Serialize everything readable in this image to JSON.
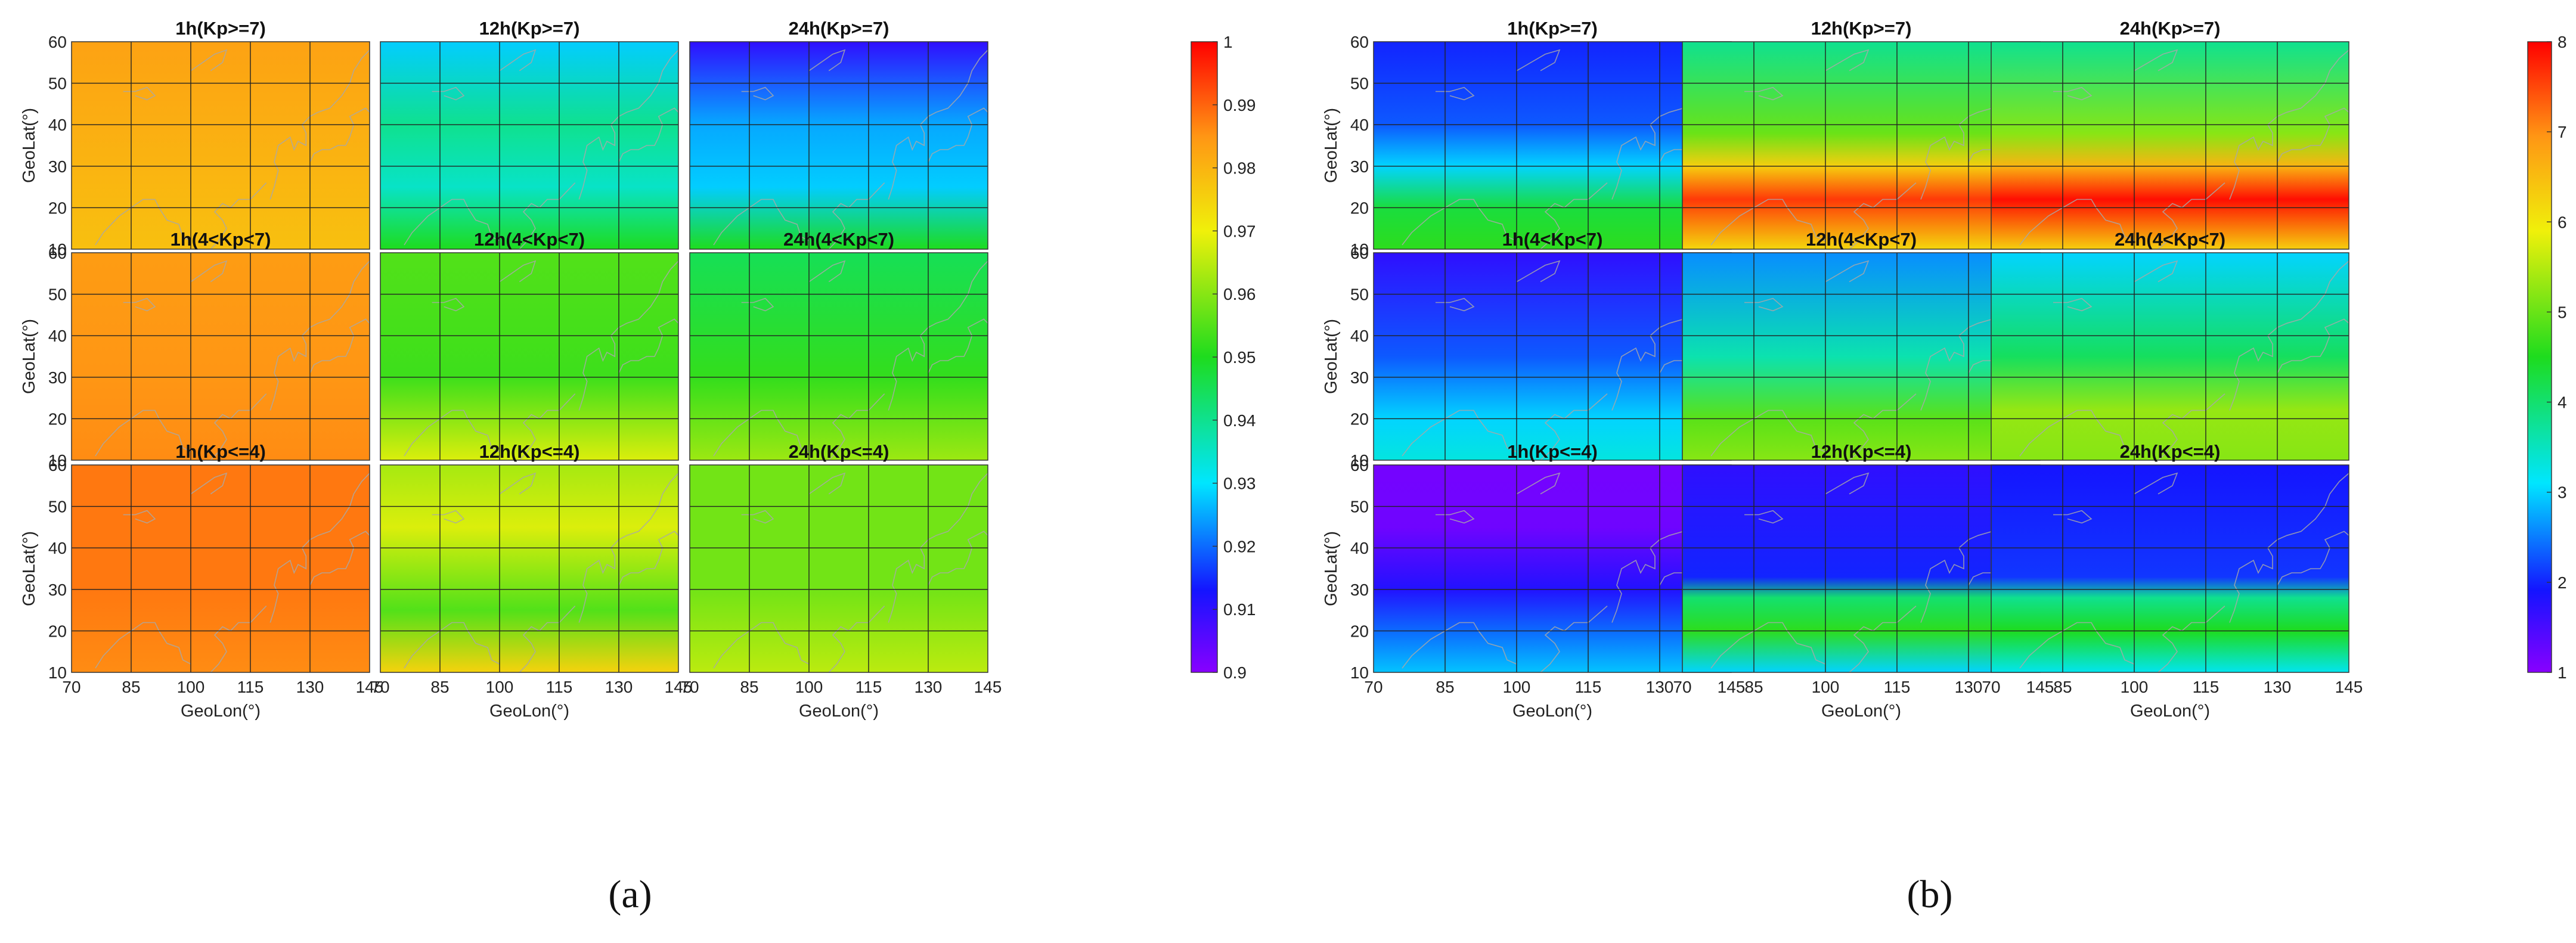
{
  "figure": {
    "sublabels": [
      "(a)",
      "(b)"
    ]
  },
  "chart_data": [
    {
      "type": "heatmap",
      "panel": "(a)",
      "xlabel": "GeoLon(°)",
      "ylabel": "GeoLat(°)",
      "xlim": [
        70,
        145
      ],
      "ylim": [
        10,
        60
      ],
      "xticks": [
        "70",
        "85",
        "100",
        "115",
        "130",
        "145"
      ],
      "yticks": [
        "10",
        "20",
        "30",
        "40",
        "50",
        "60"
      ],
      "grid": true,
      "colorbar": {
        "range": [
          0.9,
          1.0
        ],
        "ticks": [
          "0.9",
          "0.91",
          "0.92",
          "0.93",
          "0.94",
          "0.95",
          "0.96",
          "0.97",
          "0.98",
          "0.99",
          "1"
        ]
      },
      "subplots": [
        {
          "title": "1h(Kp>=7)",
          "value_range": [
            0.978,
            0.985
          ],
          "lat_profile": [
            {
              "lat": 10,
              "v": 0.978
            },
            {
              "lat": 30,
              "v": 0.98
            },
            {
              "lat": 60,
              "v": 0.983
            }
          ]
        },
        {
          "title": "12h(Kp>=7)",
          "value_range": [
            0.925,
            0.95
          ],
          "lat_profile": [
            {
              "lat": 10,
              "v": 0.95
            },
            {
              "lat": 25,
              "v": 0.935
            },
            {
              "lat": 40,
              "v": 0.94
            },
            {
              "lat": 60,
              "v": 0.928
            }
          ]
        },
        {
          "title": "24h(Kp>=7)",
          "value_range": [
            0.905,
            0.95
          ],
          "lat_profile": [
            {
              "lat": 10,
              "v": 0.95
            },
            {
              "lat": 25,
              "v": 0.928
            },
            {
              "lat": 40,
              "v": 0.925
            },
            {
              "lat": 60,
              "v": 0.91
            }
          ]
        },
        {
          "title": "1h(4<Kp<7)",
          "value_range": [
            0.983,
            0.988
          ],
          "lat_profile": [
            {
              "lat": 10,
              "v": 0.986
            },
            {
              "lat": 30,
              "v": 0.985
            },
            {
              "lat": 60,
              "v": 0.984
            }
          ]
        },
        {
          "title": "12h(4<Kp<7)",
          "value_range": [
            0.95,
            0.968
          ],
          "lat_profile": [
            {
              "lat": 10,
              "v": 0.968
            },
            {
              "lat": 30,
              "v": 0.953
            },
            {
              "lat": 60,
              "v": 0.955
            }
          ]
        },
        {
          "title": "24h(4<Kp<7)",
          "value_range": [
            0.92,
            0.965
          ],
          "lat_profile": [
            {
              "lat": 10,
              "v": 0.962
            },
            {
              "lat": 30,
              "v": 0.952
            },
            {
              "lat": 60,
              "v": 0.945
            }
          ]
        },
        {
          "title": "1h(Kp<=4)",
          "value_range": [
            0.986,
            0.99
          ],
          "lat_profile": [
            {
              "lat": 10,
              "v": 0.986
            },
            {
              "lat": 30,
              "v": 0.988
            },
            {
              "lat": 60,
              "v": 0.988
            }
          ]
        },
        {
          "title": "12h(Kp<=4)",
          "value_range": [
            0.955,
            0.975
          ],
          "lat_profile": [
            {
              "lat": 10,
              "v": 0.975
            },
            {
              "lat": 25,
              "v": 0.955
            },
            {
              "lat": 45,
              "v": 0.968
            },
            {
              "lat": 60,
              "v": 0.963
            }
          ]
        },
        {
          "title": "24h(Kp<=4)",
          "value_range": [
            0.955,
            0.968
          ],
          "lat_profile": [
            {
              "lat": 10,
              "v": 0.965
            },
            {
              "lat": 30,
              "v": 0.958
            },
            {
              "lat": 60,
              "v": 0.958
            }
          ]
        }
      ]
    },
    {
      "type": "heatmap",
      "panel": "(b)",
      "xlabel": "GeoLon(°)",
      "ylabel": "GeoLat(°)",
      "xlim": [
        70,
        145
      ],
      "ylim": [
        10,
        60
      ],
      "xticks": [
        "70",
        "85",
        "100",
        "115",
        "130",
        "145"
      ],
      "yticks": [
        "10",
        "20",
        "30",
        "40",
        "50",
        "60"
      ],
      "grid": true,
      "colorbar": {
        "range": [
          1,
          8
        ],
        "ticks": [
          "1",
          "2",
          "3",
          "4",
          "5",
          "6",
          "7",
          "8"
        ]
      },
      "subplots": [
        {
          "title": "1h(Kp>=7)",
          "value_range": [
            2.0,
            4.8
          ],
          "lat_profile": [
            {
              "lat": 10,
              "v": 4.6
            },
            {
              "lat": 20,
              "v": 4.3
            },
            {
              "lat": 30,
              "v": 3.0
            },
            {
              "lat": 40,
              "v": 2.3
            },
            {
              "lat": 60,
              "v": 2.0
            }
          ]
        },
        {
          "title": "12h(Kp>=7)",
          "value_range": [
            3.5,
            7.8
          ],
          "lat_profile": [
            {
              "lat": 10,
              "v": 6.2
            },
            {
              "lat": 22,
              "v": 7.6
            },
            {
              "lat": 30,
              "v": 6.3
            },
            {
              "lat": 38,
              "v": 5.0
            },
            {
              "lat": 60,
              "v": 3.8
            }
          ]
        },
        {
          "title": "24h(Kp>=7)",
          "value_range": [
            3.5,
            8.0
          ],
          "lat_profile": [
            {
              "lat": 10,
              "v": 6.3
            },
            {
              "lat": 22,
              "v": 7.9
            },
            {
              "lat": 30,
              "v": 6.6
            },
            {
              "lat": 38,
              "v": 5.2
            },
            {
              "lat": 60,
              "v": 3.8
            }
          ]
        },
        {
          "title": "1h(4<Kp<7)",
          "value_range": [
            1.6,
            3.4
          ],
          "lat_profile": [
            {
              "lat": 10,
              "v": 3.3
            },
            {
              "lat": 20,
              "v": 3.0
            },
            {
              "lat": 35,
              "v": 2.3
            },
            {
              "lat": 60,
              "v": 1.7
            }
          ]
        },
        {
          "title": "12h(4<Kp<7)",
          "value_range": [
            2.4,
            5.4
          ],
          "lat_profile": [
            {
              "lat": 10,
              "v": 5.2
            },
            {
              "lat": 20,
              "v": 4.9
            },
            {
              "lat": 35,
              "v": 3.6
            },
            {
              "lat": 60,
              "v": 2.6
            }
          ]
        },
        {
          "title": "24h(4<Kp<7)",
          "value_range": [
            2.8,
            5.6
          ],
          "lat_profile": [
            {
              "lat": 10,
              "v": 5.2
            },
            {
              "lat": 22,
              "v": 5.3
            },
            {
              "lat": 35,
              "v": 4.1
            },
            {
              "lat": 60,
              "v": 3.0
            }
          ]
        },
        {
          "title": "1h(Kp<=4)",
          "value_range": [
            1.1,
            3.0
          ],
          "lat_profile": [
            {
              "lat": 10,
              "v": 2.9
            },
            {
              "lat": 20,
              "v": 2.4
            },
            {
              "lat": 30,
              "v": 1.8
            },
            {
              "lat": 45,
              "v": 1.2
            },
            {
              "lat": 60,
              "v": 1.15
            }
          ]
        },
        {
          "title": "12h(Kp<=4)",
          "value_range": [
            1.6,
            5.0
          ],
          "lat_profile": [
            {
              "lat": 10,
              "v": 3.0
            },
            {
              "lat": 20,
              "v": 4.6
            },
            {
              "lat": 28,
              "v": 4.0
            },
            {
              "lat": 33,
              "v": 2.0
            },
            {
              "lat": 60,
              "v": 1.7
            }
          ]
        },
        {
          "title": "24h(Kp<=4)",
          "value_range": [
            1.8,
            4.8
          ],
          "lat_profile": [
            {
              "lat": 10,
              "v": 3.2
            },
            {
              "lat": 20,
              "v": 4.5
            },
            {
              "lat": 28,
              "v": 3.8
            },
            {
              "lat": 33,
              "v": 2.1
            },
            {
              "lat": 60,
              "v": 1.9
            }
          ]
        }
      ]
    }
  ]
}
